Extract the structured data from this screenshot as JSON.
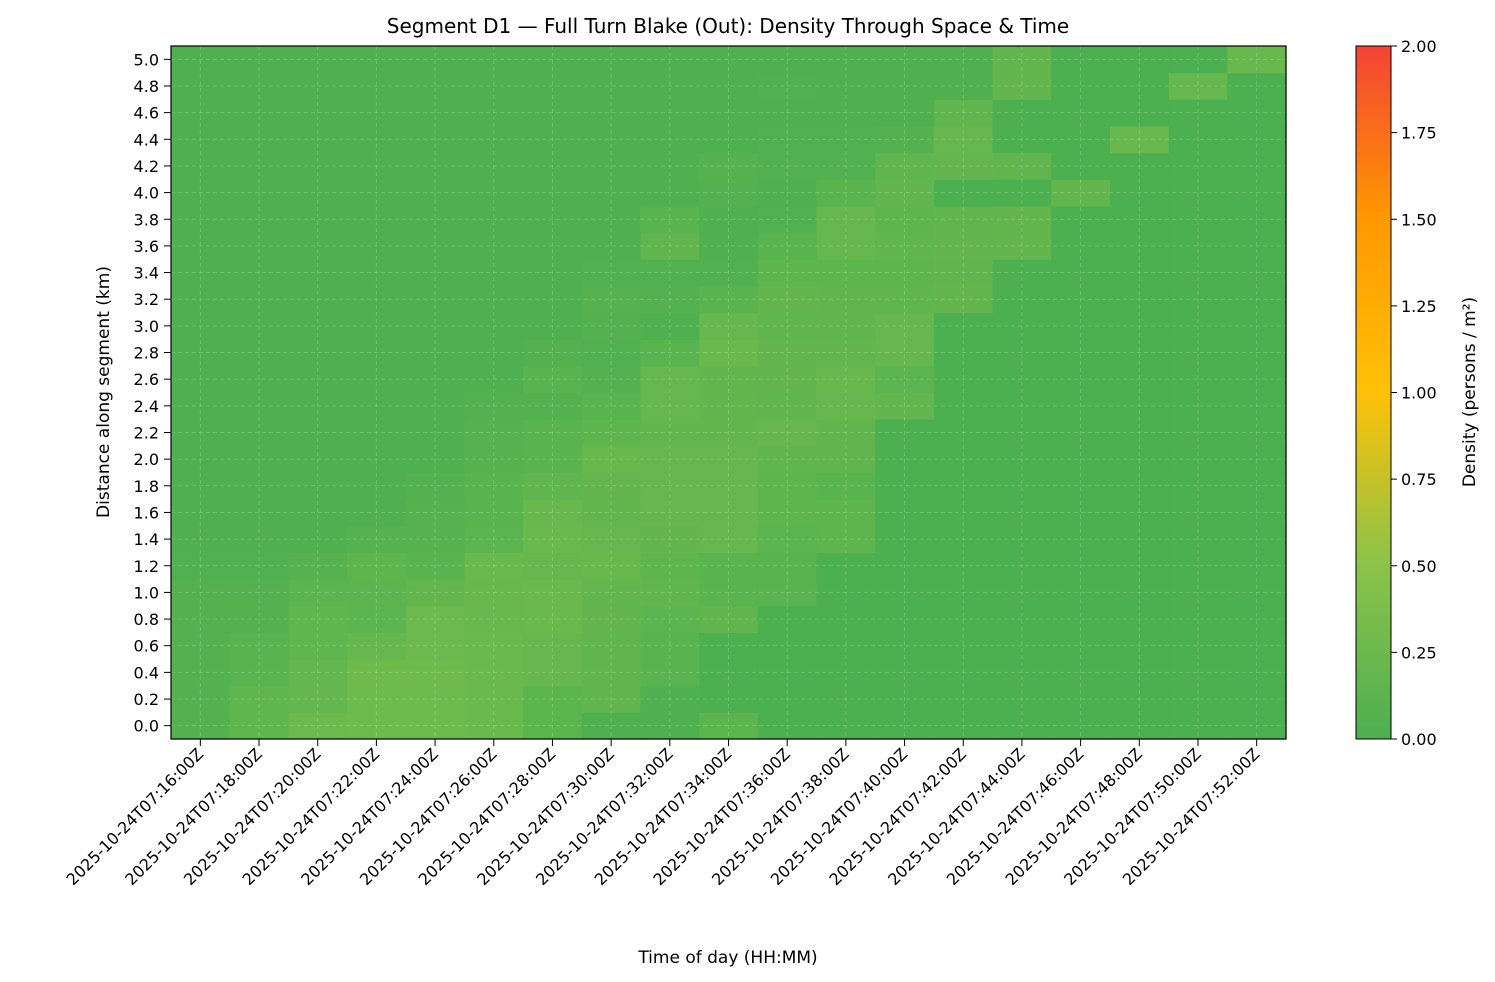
{
  "chart_data": {
    "type": "heatmap",
    "title": "Segment D1 — Full Turn Blake (Out): Density Through Space & Time",
    "xlabel": "Time of day (HH:MM)",
    "ylabel": "Distance along segment (km)",
    "x_ticks": [
      "2025-10-24T07:16:00Z",
      "2025-10-24T07:18:00Z",
      "2025-10-24T07:20:00Z",
      "2025-10-24T07:22:00Z",
      "2025-10-24T07:24:00Z",
      "2025-10-24T07:26:00Z",
      "2025-10-24T07:28:00Z",
      "2025-10-24T07:30:00Z",
      "2025-10-24T07:32:00Z",
      "2025-10-24T07:34:00Z",
      "2025-10-24T07:36:00Z",
      "2025-10-24T07:38:00Z",
      "2025-10-24T07:40:00Z",
      "2025-10-24T07:42:00Z",
      "2025-10-24T07:44:00Z",
      "2025-10-24T07:46:00Z",
      "2025-10-24T07:48:00Z",
      "2025-10-24T07:50:00Z",
      "2025-10-24T07:52:00Z"
    ],
    "y_ticks": [
      "0.0",
      "0.2",
      "0.4",
      "0.6",
      "0.8",
      "1.0",
      "1.2",
      "1.4",
      "1.6",
      "1.8",
      "2.0",
      "2.2",
      "2.4",
      "2.6",
      "2.8",
      "3.0",
      "3.2",
      "3.4",
      "3.6",
      "3.8",
      "4.0",
      "4.2",
      "4.4",
      "4.6",
      "4.8",
      "5.0"
    ],
    "z_values": [
      [
        0.06,
        0.15,
        0.25,
        0.28,
        0.28,
        0.24,
        0.13,
        0.02,
        0.02,
        0.13,
        0,
        0,
        0,
        0,
        0,
        0,
        0,
        0,
        0
      ],
      [
        0.06,
        0.15,
        0.19,
        0.28,
        0.28,
        0.24,
        0.13,
        0.16,
        0.02,
        0,
        0,
        0,
        0,
        0,
        0,
        0,
        0,
        0,
        0
      ],
      [
        0.06,
        0.1,
        0.19,
        0.28,
        0.28,
        0.24,
        0.2,
        0.16,
        0.1,
        0,
        0,
        0,
        0,
        0,
        0,
        0,
        0,
        0,
        0
      ],
      [
        0.06,
        0.1,
        0.15,
        0.2,
        0.26,
        0.24,
        0.2,
        0.16,
        0.1,
        0,
        0,
        0,
        0,
        0,
        0,
        0,
        0,
        0,
        0
      ],
      [
        0.06,
        0.06,
        0.15,
        0.12,
        0.26,
        0.22,
        0.24,
        0.18,
        0.12,
        0.16,
        0,
        0,
        0,
        0,
        0,
        0,
        0,
        0,
        0
      ],
      [
        0.06,
        0.06,
        0.12,
        0.12,
        0.18,
        0.22,
        0.24,
        0.18,
        0.16,
        0.1,
        0.1,
        0,
        0,
        0,
        0,
        0,
        0,
        0,
        0
      ],
      [
        0.04,
        0.04,
        0.08,
        0.14,
        0.1,
        0.24,
        0.2,
        0.22,
        0.14,
        0.1,
        0.1,
        0,
        0,
        0,
        0,
        0,
        0,
        0,
        0
      ],
      [
        0.03,
        0.03,
        0.03,
        0.08,
        0.08,
        0.12,
        0.24,
        0.2,
        0.18,
        0.2,
        0.12,
        0.14,
        0,
        0,
        0,
        0,
        0,
        0,
        0
      ],
      [
        0.02,
        0.02,
        0.02,
        0.03,
        0.08,
        0.1,
        0.22,
        0.18,
        0.2,
        0.2,
        0.14,
        0.14,
        0,
        0,
        0,
        0,
        0,
        0,
        0
      ],
      [
        0.02,
        0.02,
        0.02,
        0.02,
        0.06,
        0.1,
        0.16,
        0.18,
        0.2,
        0.2,
        0.14,
        0.1,
        0,
        0,
        0,
        0,
        0,
        0,
        0
      ],
      [
        0.02,
        0.02,
        0.02,
        0.02,
        0.02,
        0.08,
        0.1,
        0.22,
        0.2,
        0.2,
        0.16,
        0.16,
        0,
        0,
        0,
        0,
        0,
        0,
        0
      ],
      [
        0.02,
        0.02,
        0.02,
        0.02,
        0.02,
        0.08,
        0.1,
        0.14,
        0.18,
        0.18,
        0.2,
        0.16,
        0,
        0,
        0,
        0,
        0,
        0,
        0
      ],
      [
        0.02,
        0.02,
        0.02,
        0.02,
        0.02,
        0.06,
        0.06,
        0.1,
        0.2,
        0.18,
        0.16,
        0.2,
        0.18,
        0,
        0,
        0,
        0,
        0,
        0
      ],
      [
        0.02,
        0.02,
        0.02,
        0.02,
        0.02,
        0.02,
        0.1,
        0.06,
        0.2,
        0.18,
        0.18,
        0.22,
        0.12,
        0,
        0,
        0,
        0,
        0,
        0
      ],
      [
        0.02,
        0.02,
        0.02,
        0.02,
        0.02,
        0.02,
        0.06,
        0.04,
        0.1,
        0.24,
        0.18,
        0.18,
        0.2,
        0,
        0,
        0,
        0,
        0,
        0
      ],
      [
        0.02,
        0.02,
        0.02,
        0.02,
        0.02,
        0.02,
        0.02,
        0.06,
        0.02,
        0.2,
        0.16,
        0.16,
        0.2,
        0,
        0,
        0,
        0,
        0,
        0
      ],
      [
        0.02,
        0.02,
        0.02,
        0.02,
        0.02,
        0.02,
        0.02,
        0.08,
        0.06,
        0.1,
        0.18,
        0.16,
        0.16,
        0.18,
        0,
        0,
        0,
        0,
        0
      ],
      [
        0.02,
        0.02,
        0.02,
        0.02,
        0.02,
        0.02,
        0.02,
        0.04,
        0.04,
        0.04,
        0.14,
        0.14,
        0.14,
        0.16,
        0,
        0,
        0,
        0,
        0
      ],
      [
        0.02,
        0.02,
        0.02,
        0.02,
        0.02,
        0.02,
        0.02,
        0.02,
        0.16,
        0.02,
        0.1,
        0.2,
        0.16,
        0.18,
        0.18,
        0,
        0,
        0,
        0
      ],
      [
        0.02,
        0.02,
        0.02,
        0.02,
        0.02,
        0.02,
        0.02,
        0.02,
        0.1,
        0.02,
        0.04,
        0.2,
        0.14,
        0.16,
        0.18,
        0,
        0,
        0,
        0
      ],
      [
        0.02,
        0.02,
        0.02,
        0.02,
        0.02,
        0.02,
        0.02,
        0.02,
        0.02,
        0.06,
        0.02,
        0.1,
        0.18,
        0,
        0,
        0.18,
        0,
        0,
        0
      ],
      [
        0.02,
        0.02,
        0.02,
        0.02,
        0.02,
        0.02,
        0.02,
        0.02,
        0.02,
        0.08,
        0.04,
        0.04,
        0.16,
        0.18,
        0.16,
        0,
        0,
        0,
        0
      ],
      [
        0.02,
        0.02,
        0.02,
        0.02,
        0.02,
        0.02,
        0.02,
        0.02,
        0.02,
        0.02,
        0.04,
        0.04,
        0.06,
        0.2,
        0,
        0,
        0.22,
        0,
        0
      ],
      [
        0.02,
        0.02,
        0.02,
        0.02,
        0.02,
        0.02,
        0.02,
        0.02,
        0.02,
        0.02,
        0.02,
        0.02,
        0.02,
        0.16,
        0,
        0,
        0,
        0,
        0
      ],
      [
        0.02,
        0.02,
        0.02,
        0.02,
        0.02,
        0.02,
        0.02,
        0.02,
        0.02,
        0.02,
        0.04,
        0.02,
        0.02,
        0.02,
        0.18,
        0,
        0,
        0.2,
        0
      ],
      [
        0.02,
        0.02,
        0.02,
        0.02,
        0.02,
        0.02,
        0.02,
        0.02,
        0.02,
        0.02,
        0.02,
        0.02,
        0.02,
        0.02,
        0.18,
        0,
        0,
        0,
        0.22
      ]
    ],
    "zlim": [
      0,
      2.0
    ],
    "colorbar": {
      "label": "Density (persons / m²)",
      "ticks": [
        "0.00",
        "0.25",
        "0.50",
        "0.75",
        "1.00",
        "1.25",
        "1.50",
        "1.75",
        "2.00"
      ],
      "colors": [
        "#4caf50",
        "#8bc34a",
        "#ffc107",
        "#ff9800",
        "#f44336"
      ]
    },
    "grid": true
  }
}
